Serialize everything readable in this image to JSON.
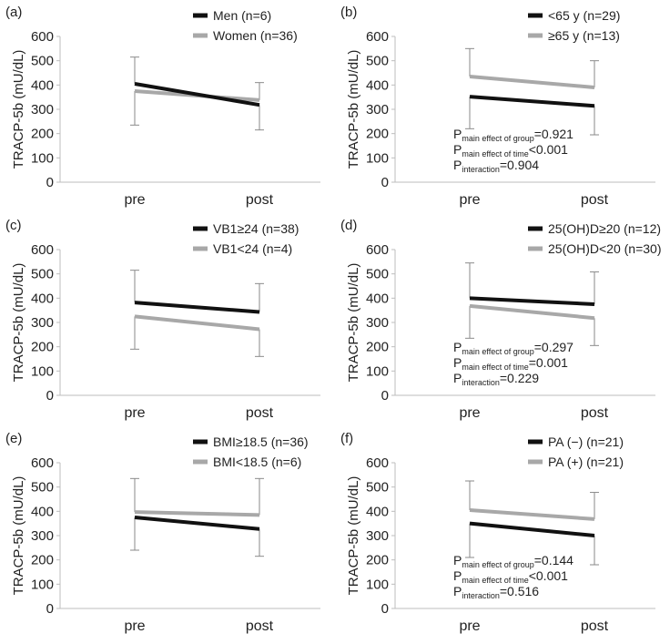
{
  "colors": {
    "black_series": "#111111",
    "gray_series": "#a8a8a8",
    "axis": "#bdbdbd",
    "text": "#222222",
    "errorbar": "#8a8a8a"
  },
  "chart_data": [
    {
      "type": "line",
      "panel_label": "(a)",
      "ylabel": "TRACP-5b (mU/dL)",
      "categories": [
        "pre",
        "post"
      ],
      "ylim": [
        0,
        600
      ],
      "yticks": [
        "0",
        "100",
        "200",
        "300",
        "400",
        "500",
        "600"
      ],
      "series": [
        {
          "name": "Men (n=6)",
          "color": "#111111",
          "values": [
            405,
            318
          ],
          "err_upper": [
            515,
            410
          ],
          "err_lower": [
            235,
            215
          ]
        },
        {
          "name": "Women (n=36)",
          "color": "#a8a8a8",
          "values": [
            375,
            338
          ],
          "err_upper": [
            515,
            410
          ],
          "err_lower": [
            235,
            215
          ]
        }
      ],
      "stats": []
    },
    {
      "type": "line",
      "panel_label": "(b)",
      "ylabel": "TRACP-5b (mU/dL)",
      "categories": [
        "pre",
        "post"
      ],
      "ylim": [
        0,
        600
      ],
      "yticks": [
        "0",
        "100",
        "200",
        "300",
        "400",
        "500",
        "600"
      ],
      "series": [
        {
          "name": "<65 y (n=29)",
          "color": "#111111",
          "values": [
            352,
            314
          ],
          "err_upper": [
            550,
            500
          ],
          "err_lower": [
            220,
            195
          ]
        },
        {
          "name": "≥65 y (n=13)",
          "color": "#a8a8a8",
          "values": [
            435,
            390
          ],
          "err_upper": [
            550,
            500
          ],
          "err_lower": [
            220,
            195
          ]
        }
      ],
      "stats": [
        {
          "main": "P",
          "sub": "main effect of group",
          "rest": "=0.921"
        },
        {
          "main": "P",
          "sub": "main effect of time",
          "rest": "<0.001"
        },
        {
          "main": "P",
          "sub": "interaction",
          "rest": "=0.904"
        }
      ]
    },
    {
      "type": "line",
      "panel_label": "(c)",
      "ylabel": "TRACP-5b (mU/dL)",
      "categories": [
        "pre",
        "post"
      ],
      "ylim": [
        0,
        600
      ],
      "yticks": [
        "0",
        "100",
        "200",
        "300",
        "400",
        "500",
        "600"
      ],
      "series": [
        {
          "name": "VB1≥24 (n=38)",
          "color": "#111111",
          "values": [
            382,
            343
          ],
          "err_upper": [
            515,
            460
          ],
          "err_lower": [
            190,
            160
          ]
        },
        {
          "name": "VB1<24 (n=4)",
          "color": "#a8a8a8",
          "values": [
            325,
            272
          ],
          "err_upper": [
            515,
            460
          ],
          "err_lower": [
            190,
            160
          ]
        }
      ],
      "stats": []
    },
    {
      "type": "line",
      "panel_label": "(d)",
      "ylabel": "TRACP-5b (mU/dL)",
      "categories": [
        "pre",
        "post"
      ],
      "ylim": [
        0,
        600
      ],
      "yticks": [
        "0",
        "100",
        "200",
        "300",
        "400",
        "500",
        "600"
      ],
      "series": [
        {
          "name": "25(OH)D≥20 (n=12)",
          "color": "#111111",
          "values": [
            400,
            375
          ],
          "err_upper": [
            545,
            508
          ],
          "err_lower": [
            235,
            205
          ]
        },
        {
          "name": "25(OH)D<20 (n=30)",
          "color": "#a8a8a8",
          "values": [
            368,
            318
          ],
          "err_upper": [
            545,
            508
          ],
          "err_lower": [
            235,
            205
          ]
        }
      ],
      "stats": [
        {
          "main": "P",
          "sub": "main effect of group",
          "rest": "=0.297"
        },
        {
          "main": "P",
          "sub": "main effect of time",
          "rest": "=0.001"
        },
        {
          "main": "P",
          "sub": "interaction",
          "rest": "=0.229"
        }
      ]
    },
    {
      "type": "line",
      "panel_label": "(e)",
      "ylabel": "TRACP-5b (mU/dL)",
      "categories": [
        "pre",
        "post"
      ],
      "ylim": [
        0,
        600
      ],
      "yticks": [
        "0",
        "100",
        "200",
        "300",
        "400",
        "500",
        "600"
      ],
      "series": [
        {
          "name": "BMI≥18.5 (n=36)",
          "color": "#111111",
          "values": [
            375,
            327
          ],
          "err_upper": [
            535,
            535
          ],
          "err_lower": [
            240,
            215
          ]
        },
        {
          "name": "BMI<18.5 (n=6)",
          "color": "#a8a8a8",
          "values": [
            397,
            385
          ],
          "err_upper": [
            535,
            535
          ],
          "err_lower": [
            240,
            215
          ]
        }
      ],
      "stats": []
    },
    {
      "type": "line",
      "panel_label": "(f)",
      "ylabel": "TRACP-5b (mU/dL)",
      "categories": [
        "pre",
        "post"
      ],
      "ylim": [
        0,
        600
      ],
      "yticks": [
        "0",
        "100",
        "200",
        "300",
        "400",
        "500",
        "600"
      ],
      "series": [
        {
          "name": "PA (−) (n=21)",
          "color": "#111111",
          "values": [
            350,
            300
          ],
          "err_upper": [
            525,
            478
          ],
          "err_lower": [
            210,
            180
          ]
        },
        {
          "name": "PA (+) (n=21)",
          "color": "#a8a8a8",
          "values": [
            405,
            368
          ],
          "err_upper": [
            525,
            478
          ],
          "err_lower": [
            210,
            180
          ]
        }
      ],
      "stats": [
        {
          "main": "P",
          "sub": "main effect of group",
          "rest": "=0.144"
        },
        {
          "main": "P",
          "sub": "main effect of time",
          "rest": "<0.001"
        },
        {
          "main": "P",
          "sub": "interaction",
          "rest": "=0.516"
        }
      ]
    }
  ]
}
